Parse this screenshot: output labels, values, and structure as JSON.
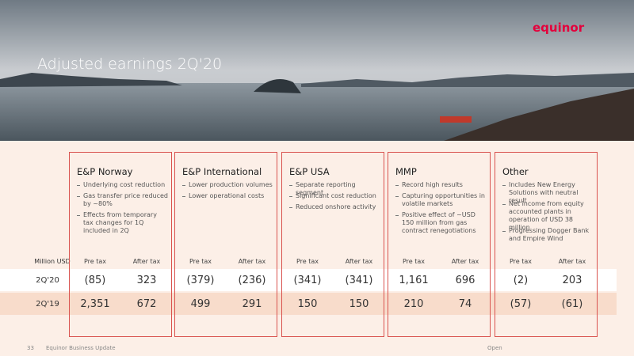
{
  "header": {
    "title": "Adjusted earnings 2Q'20",
    "logo": "equinor"
  },
  "table": {
    "unit_label": "Million USD",
    "segments": [
      {
        "name": "E&P Norway",
        "bullets": [
          "Underlying cost reduction",
          "Gas transfer price reduced by ~80%",
          "Effects from temporary tax changes for 1Q included in 2Q"
        ],
        "columns": [
          "Pre tax",
          "After tax"
        ]
      },
      {
        "name": "E&P International",
        "bullets": [
          "Lower production volumes",
          "Lower operational costs"
        ],
        "columns": [
          "Pre tax",
          "After tax"
        ]
      },
      {
        "name": "E&P USA",
        "bullets": [
          "Separate reporting segment",
          "Significant cost reduction",
          "Reduced onshore activity"
        ],
        "columns": [
          "Pre tax",
          "After tax"
        ]
      },
      {
        "name": "MMP",
        "bullets": [
          "Record high results",
          "Capturing opportunities in volatile markets",
          "Positive effect of ~USD 150 million from gas contract renegotiations"
        ],
        "columns": [
          "Pre tax",
          "After tax"
        ]
      },
      {
        "name": "Other",
        "bullets": [
          "Includes New Energy Solutions with neutral result",
          "Net income from equity accounted plants in operation of USD 38 million",
          "Progressing Dogger Bank and Empire Wind"
        ],
        "columns": [
          "Pre tax",
          "After tax"
        ]
      }
    ],
    "rows": [
      {
        "label": "2Q'20",
        "values": [
          "(85)",
          "323",
          "(379)",
          "(236)",
          "(341)",
          "(341)",
          "1,161",
          "696",
          "(2)",
          "203"
        ]
      },
      {
        "label": "2Q'19",
        "values": [
          "2,351",
          "672",
          "499",
          "291",
          "150",
          "150",
          "210",
          "74",
          "(57)",
          "(61)"
        ]
      }
    ]
  },
  "footer": {
    "page": "33",
    "text": "Equinor Business Update",
    "classification": "Open"
  }
}
